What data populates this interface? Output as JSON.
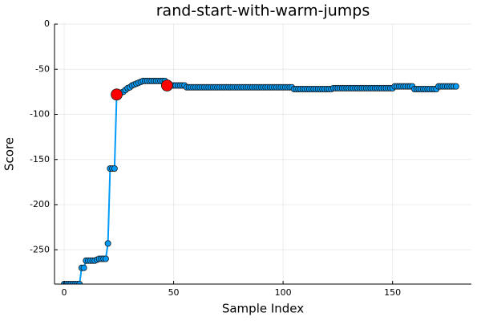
{
  "chart_data": {
    "type": "line",
    "title": "rand-start-with-warm-jumps",
    "xlabel": "Sample Index",
    "ylabel": "Score",
    "x": [
      0,
      1,
      2,
      3,
      4,
      5,
      6,
      7,
      8,
      9,
      10,
      11,
      12,
      13,
      14,
      15,
      16,
      17,
      18,
      19,
      20,
      21,
      22,
      23,
      24,
      25,
      26,
      27,
      28,
      29,
      30,
      31,
      32,
      33,
      34,
      35,
      36,
      37,
      38,
      39,
      40,
      41,
      42,
      43,
      44,
      45,
      46,
      47,
      48,
      49,
      50,
      51,
      52,
      53,
      54,
      55,
      56,
      57,
      58,
      59,
      60,
      61,
      62,
      63,
      64,
      65,
      66,
      67,
      68,
      69,
      70,
      71,
      72,
      73,
      74,
      75,
      76,
      77,
      78,
      79,
      80,
      81,
      82,
      83,
      84,
      85,
      86,
      87,
      88,
      89,
      90,
      91,
      92,
      93,
      94,
      95,
      96,
      97,
      98,
      99,
      100,
      101,
      102,
      103,
      104,
      105,
      106,
      107,
      108,
      109,
      110,
      111,
      112,
      113,
      114,
      115,
      116,
      117,
      118,
      119,
      120,
      121,
      122,
      123,
      124,
      125,
      126,
      127,
      128,
      129,
      130,
      131,
      132,
      133,
      134,
      135,
      136,
      137,
      138,
      139,
      140,
      141,
      142,
      143,
      144,
      145,
      146,
      147,
      148,
      149,
      150,
      151,
      152,
      153,
      154,
      155,
      156,
      157,
      158,
      159,
      160,
      161,
      162,
      163,
      164,
      165,
      166,
      167,
      168,
      169,
      170,
      171,
      172,
      173,
      174,
      175,
      176,
      177,
      178,
      179
    ],
    "values": [
      -288,
      -288,
      -288,
      -288,
      -288,
      -288,
      -288,
      -288,
      -270,
      -270,
      -262,
      -262,
      -262,
      -262,
      -262,
      -261,
      -260,
      -260,
      -260,
      -260,
      -243,
      -160,
      -160,
      -160,
      -78,
      -76,
      -76,
      -75,
      -73,
      -71,
      -70,
      -68,
      -67,
      -66,
      -65,
      -64,
      -63,
      -63,
      -63,
      -63,
      -63,
      -63,
      -63,
      -63,
      -63,
      -63,
      -63,
      -68,
      -68,
      -68,
      -68,
      -68,
      -68,
      -68,
      -68,
      -68,
      -70,
      -70,
      -70,
      -70,
      -70,
      -70,
      -70,
      -70,
      -70,
      -70,
      -70,
      -70,
      -70,
      -70,
      -70,
      -70,
      -70,
      -70,
      -70,
      -70,
      -70,
      -70,
      -70,
      -70,
      -70,
      -70,
      -70,
      -70,
      -70,
      -70,
      -70,
      -70,
      -70,
      -70,
      -70,
      -70,
      -70,
      -70,
      -70,
      -70,
      -70,
      -70,
      -70,
      -70,
      -70,
      -70,
      -70,
      -70,
      -70,
      -72,
      -72,
      -72,
      -72,
      -72,
      -72,
      -72,
      -72,
      -72,
      -72,
      -72,
      -72,
      -72,
      -72,
      -72,
      -72,
      -72,
      -72,
      -71,
      -71,
      -71,
      -71,
      -71,
      -71,
      -71,
      -71,
      -71,
      -71,
      -71,
      -71,
      -71,
      -71,
      -71,
      -71,
      -71,
      -71,
      -71,
      -71,
      -71,
      -71,
      -71,
      -71,
      -71,
      -71,
      -71,
      -71,
      -69,
      -69,
      -69,
      -69,
      -69,
      -69,
      -69,
      -69,
      -69,
      -72,
      -72,
      -72,
      -72,
      -72,
      -72,
      -72,
      -72,
      -72,
      -72,
      -72,
      -69,
      -69,
      -69,
      -69,
      -69,
      -69,
      -69,
      -69,
      -69
    ],
    "color": "#009af9",
    "highlights": {
      "x": [
        24,
        47
      ],
      "values": [
        -78,
        -68
      ],
      "color": "#ff0000"
    },
    "xlim": [
      -4.4,
      186
    ],
    "xticks": [
      0,
      50,
      100,
      150
    ],
    "ylim": [
      -288,
      0
    ],
    "yticks": [
      -250,
      -200,
      -150,
      -100,
      -50,
      0
    ],
    "grid": true
  }
}
